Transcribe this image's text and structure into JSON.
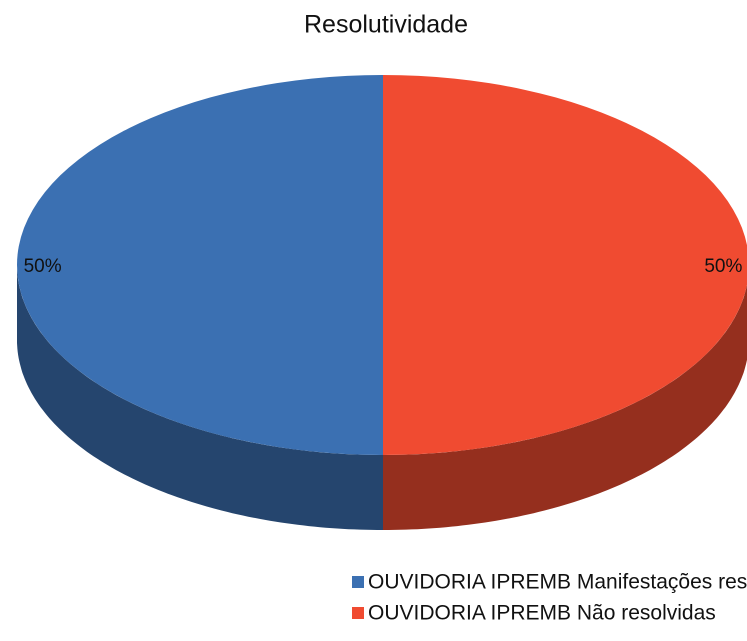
{
  "chart_data": {
    "type": "pie",
    "title": "Resolutividade",
    "categories": [
      "OUVIDORIA IPREMB Manifestações resolvidas",
      "OUVIDORIA IPREMB Não resolvidas"
    ],
    "values": [
      50,
      50
    ],
    "value_labels": [
      "50%",
      "50%"
    ],
    "colors": [
      "#3b70b2",
      "#f04b31"
    ],
    "legend": "bottom"
  }
}
